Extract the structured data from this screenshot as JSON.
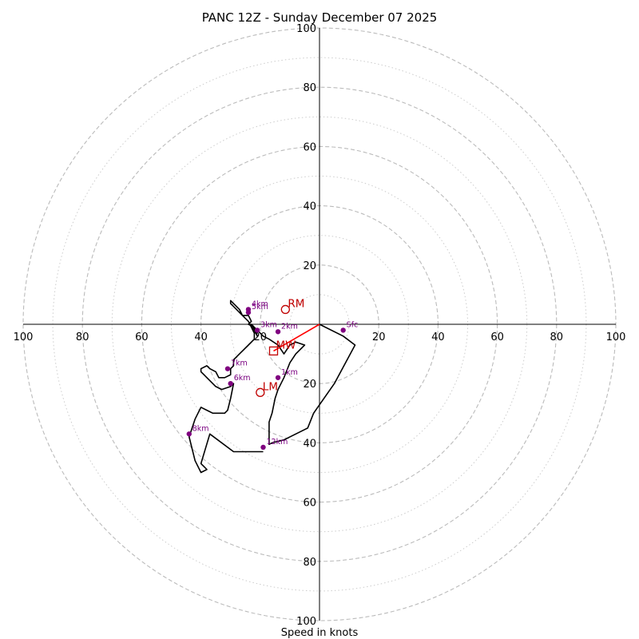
{
  "chart_data": {
    "type": "hodograph",
    "title": "PANC 12Z - Sunday December 07 2025",
    "xlabel": "Speed in knots",
    "range": [
      -100,
      100
    ],
    "major_rings": [
      20,
      40,
      60,
      80,
      100
    ],
    "minor_rings": [
      10,
      30,
      50,
      70,
      90
    ],
    "tick_labels": {
      "top": [
        "20",
        "40",
        "60",
        "80",
        "100"
      ],
      "bottom": [
        "20",
        "40",
        "60",
        "80",
        "100"
      ],
      "left": [
        "20",
        "40",
        "60",
        "80",
        "100"
      ],
      "right": [
        "20",
        "40",
        "60",
        "80",
        "100"
      ]
    },
    "trace": [
      [
        0,
        0
      ],
      [
        8,
        -4
      ],
      [
        12,
        -7
      ],
      [
        5,
        -20
      ],
      [
        -2,
        -30
      ],
      [
        -4,
        -35
      ],
      [
        -12,
        -39
      ],
      [
        -16,
        -40
      ],
      [
        -17,
        -40.5
      ],
      [
        -17,
        -37
      ],
      [
        -17,
        -33
      ],
      [
        -16,
        -30
      ],
      [
        -15,
        -25
      ],
      [
        -14,
        -22
      ],
      [
        -13,
        -20
      ],
      [
        -12,
        -18
      ],
      [
        -10,
        -13
      ],
      [
        -8,
        -10
      ],
      [
        -5,
        -7
      ],
      [
        -8,
        -6
      ],
      [
        -10,
        -7
      ],
      [
        -12,
        -10
      ],
      [
        -14,
        -7
      ],
      [
        -17,
        -5
      ],
      [
        -19,
        -4
      ],
      [
        -20,
        -3
      ],
      [
        -21,
        -2
      ],
      [
        -22,
        -1
      ],
      [
        -23,
        0
      ],
      [
        -21,
        -4
      ],
      [
        -22,
        -1
      ],
      [
        -24,
        0
      ],
      [
        -23,
        1
      ],
      [
        -24,
        3
      ],
      [
        -26,
        3
      ],
      [
        -28,
        5
      ],
      [
        -30,
        7
      ],
      [
        -30,
        8
      ],
      [
        -27,
        5
      ],
      [
        -26,
        3
      ],
      [
        -24,
        1
      ],
      [
        -23,
        -1
      ],
      [
        -22,
        -3
      ],
      [
        -22,
        -5
      ],
      [
        -24,
        -7
      ],
      [
        -26,
        -9
      ],
      [
        -27,
        -10
      ],
      [
        -28,
        -11
      ],
      [
        -29,
        -12
      ],
      [
        -29,
        -14
      ],
      [
        -30,
        -15
      ],
      [
        -30,
        -17
      ],
      [
        -32,
        -18
      ],
      [
        -33,
        -18
      ],
      [
        -34,
        -18
      ],
      [
        -35,
        -16
      ],
      [
        -37,
        -15
      ],
      [
        -38,
        -14
      ],
      [
        -40,
        -15
      ],
      [
        -40,
        -16
      ],
      [
        -38,
        -18
      ],
      [
        -35,
        -21
      ],
      [
        -33,
        -22
      ],
      [
        -30,
        -21
      ],
      [
        -29,
        -20
      ],
      [
        -30,
        -25
      ],
      [
        -31,
        -29
      ],
      [
        -32,
        -30
      ],
      [
        -36,
        -30
      ],
      [
        -38,
        -29
      ],
      [
        -40,
        -28
      ],
      [
        -42,
        -32
      ],
      [
        -44,
        -38
      ],
      [
        -43,
        -42
      ],
      [
        -42,
        -46
      ],
      [
        -40,
        -50
      ],
      [
        -38,
        -49
      ],
      [
        -39,
        -48
      ],
      [
        -40,
        -47
      ],
      [
        -37,
        -37
      ],
      [
        -29,
        -43
      ],
      [
        -19,
        -43
      ]
    ],
    "height_markers": [
      {
        "label": "Sfc",
        "u": 8,
        "v": -2
      },
      {
        "label": "1km",
        "u": -14,
        "v": -18
      },
      {
        "label": "2km",
        "u": -14,
        "v": -2.5
      },
      {
        "label": "3km",
        "u": -21,
        "v": -2
      },
      {
        "label": "4km",
        "u": -24,
        "v": 5
      },
      {
        "label": "5km",
        "u": -24,
        "v": 4
      },
      {
        "label": "6km",
        "u": -30,
        "v": -20
      },
      {
        "label": "7km",
        "u": -31,
        "v": -15
      },
      {
        "label": "8km",
        "u": -44,
        "v": -37
      },
      {
        "label": "12km",
        "u": -19,
        "v": -41.5
      }
    ],
    "storm_motion": [
      {
        "label": "RM",
        "u": -11.5,
        "v": 5,
        "shape": "circle"
      },
      {
        "label": "LM",
        "u": -20,
        "v": -23,
        "shape": "circle"
      },
      {
        "label": "MW",
        "u": -15.5,
        "v": -9,
        "shape": "square"
      }
    ],
    "shear_vector": {
      "from_u": 0,
      "from_v": 0,
      "to_u": -15.5,
      "to_v": -9
    },
    "colors": {
      "trace": "#000000",
      "markers": "#800080",
      "storm": "#c00000",
      "shear": "#ff0000",
      "major_ring": "#bbbbbb",
      "minor_ring": "#cccccc"
    }
  }
}
